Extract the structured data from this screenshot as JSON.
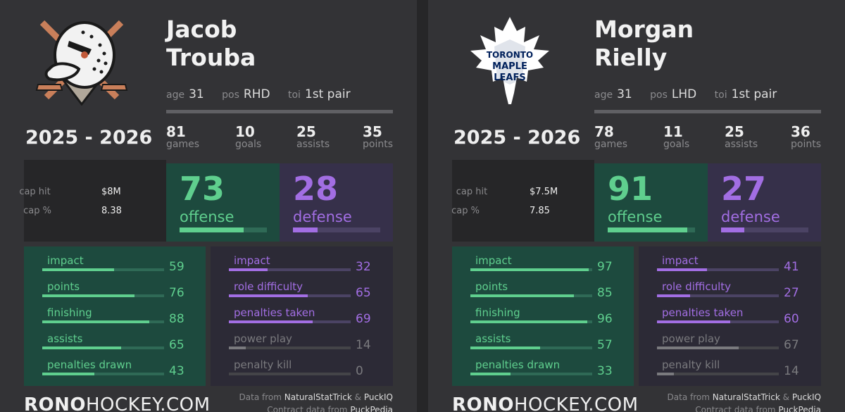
{
  "colors": {
    "offense_accent": "#5fcf8e",
    "defense_accent": "#a26ee3",
    "offense_bg": "#1d4a3e",
    "defense_bg": "#36304a",
    "neutral_text": "#8a8a8d"
  },
  "labels": {
    "age": "age",
    "pos": "pos",
    "toi": "toi",
    "games": "games",
    "goals": "goals",
    "assists": "assists",
    "points": "points",
    "cap_hit": "cap hit",
    "cap_pct": "cap %",
    "offense": "offense",
    "defense": "defense"
  },
  "footer": {
    "brand_bold": "RONO",
    "brand_rest": "HOCKEY.COM",
    "data_prefix": "Data from",
    "source1": "NaturalStatTrick",
    "amp": "&",
    "source2": "PuckIQ",
    "contract_prefix": "Contract data from",
    "contract_source": "PuckPedia"
  },
  "players": [
    {
      "team_logo": "anaheim-ducks-logo",
      "first_name": "Jacob",
      "last_name": "Trouba",
      "age": "31",
      "pos": "RHD",
      "toi": "1st pair",
      "season": "2025 - 2026",
      "games": "81",
      "goals": "10",
      "assists": "25",
      "points": "35",
      "cap_hit": "$8M",
      "cap_pct": "8.38",
      "offense": 73,
      "defense": 28,
      "offense_rows": [
        {
          "label": "impact",
          "value": 59
        },
        {
          "label": "points",
          "value": 76
        },
        {
          "label": "finishing",
          "value": 88
        },
        {
          "label": "assists",
          "value": 65
        },
        {
          "label": "penalties drawn",
          "value": 43
        }
      ],
      "defense_rows": [
        {
          "label": "impact",
          "value": 32,
          "muted": false
        },
        {
          "label": "role difficulty",
          "value": 65,
          "muted": false
        },
        {
          "label": "penalties taken",
          "value": 69,
          "muted": false
        },
        {
          "label": "power play",
          "value": 14,
          "muted": true
        },
        {
          "label": "penalty kill",
          "value": 0,
          "muted": true
        }
      ]
    },
    {
      "team_logo": "toronto-maple-leafs-logo",
      "first_name": "Morgan",
      "last_name": "Rielly",
      "age": "31",
      "pos": "LHD",
      "toi": "1st pair",
      "season": "2025 - 2026",
      "games": "78",
      "goals": "11",
      "assists": "25",
      "points": "36",
      "cap_hit": "$7.5M",
      "cap_pct": "7.85",
      "offense": 91,
      "defense": 27,
      "offense_rows": [
        {
          "label": "impact",
          "value": 97
        },
        {
          "label": "points",
          "value": 85
        },
        {
          "label": "finishing",
          "value": 96
        },
        {
          "label": "assists",
          "value": 57
        },
        {
          "label": "penalties drawn",
          "value": 33
        }
      ],
      "defense_rows": [
        {
          "label": "impact",
          "value": 41,
          "muted": false
        },
        {
          "label": "role difficulty",
          "value": 27,
          "muted": false
        },
        {
          "label": "penalties taken",
          "value": 60,
          "muted": false
        },
        {
          "label": "power play",
          "value": 67,
          "muted": true
        },
        {
          "label": "penalty kill",
          "value": 14,
          "muted": true
        }
      ]
    }
  ]
}
